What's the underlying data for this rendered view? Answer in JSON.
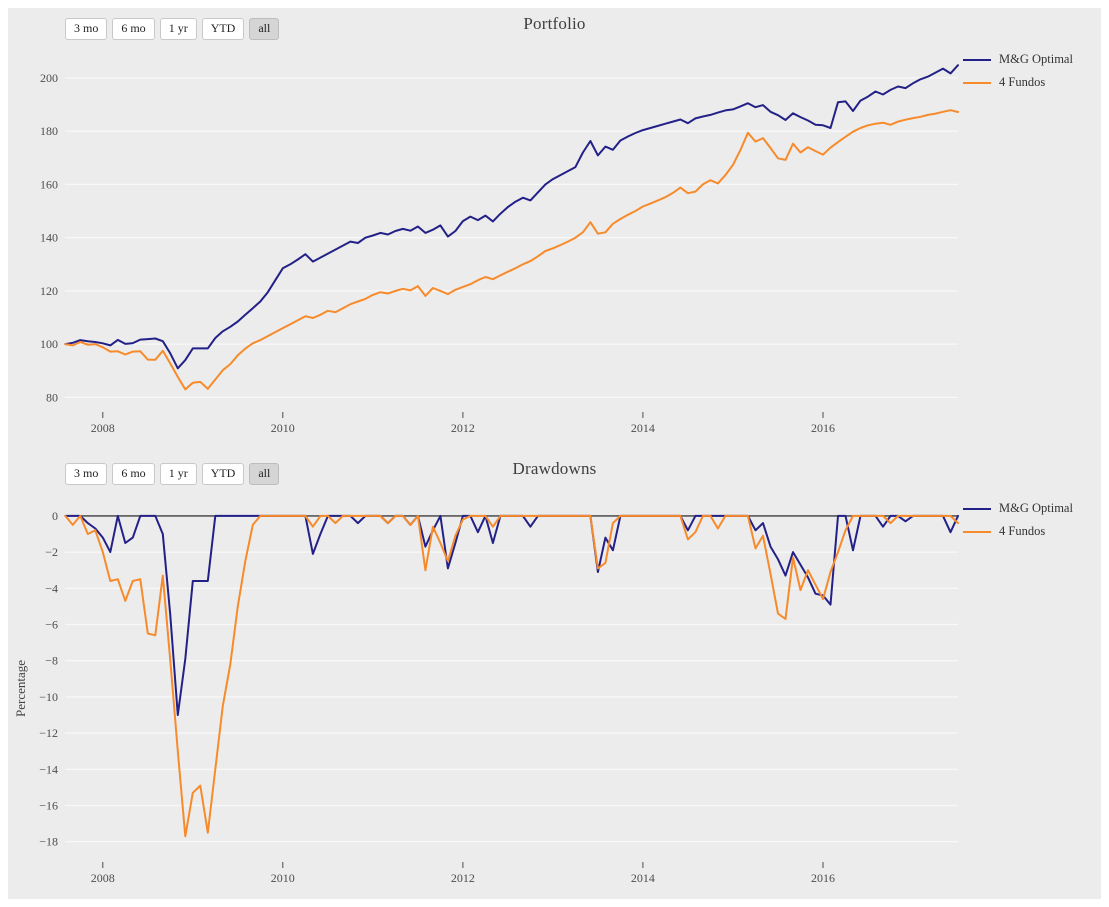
{
  "page": {
    "panel_background": "#ececec",
    "grid_color": "#f8f8f8",
    "zero_line_color": "#3d3d3d",
    "tick_label_color": "#4d4d4d",
    "title_color": "#3f3f3f"
  },
  "range_selector": {
    "buttons": [
      "3 mo",
      "6 mo",
      "1 yr",
      "YTD",
      "all"
    ],
    "active": "all"
  },
  "chart_data": [
    {
      "type": "line",
      "title": "Portfolio",
      "xlabel": "",
      "ylabel": "",
      "legend_position": "right",
      "grid": "horizontal",
      "zero_line": false,
      "x_start": 2007.5833,
      "x_step": 0.0833333,
      "x_range": [
        2007.58,
        2017.5
      ],
      "y_range": [
        76,
        210.5
      ],
      "x_ticks": [
        2008,
        2010,
        2012,
        2014,
        2016
      ],
      "y_ticks": [
        80,
        100,
        120,
        140,
        160,
        180,
        200
      ],
      "series": [
        {
          "name": "M&G Optimal",
          "color": "#232187",
          "values": [
            100.0,
            100.5,
            101.5,
            101.1,
            100.8,
            100.3,
            99.5,
            101.6,
            100.1,
            100.4,
            101.7,
            101.9,
            102.1,
            101.1,
            96.5,
            90.9,
            94.0,
            98.4,
            98.4,
            98.4,
            102.3,
            104.8,
            106.5,
            108.5,
            111.0,
            113.5,
            116.0,
            119.5,
            124.0,
            128.5,
            130.0,
            131.8,
            133.8,
            131.0,
            132.5,
            134.0,
            135.5,
            137.0,
            138.5,
            138.0,
            140.0,
            140.8,
            141.8,
            141.2,
            142.5,
            143.3,
            142.6,
            144.2,
            141.8,
            143.0,
            144.6,
            140.4,
            142.5,
            146.2,
            147.9,
            146.6,
            148.3,
            146.1,
            149.0,
            151.5,
            153.5,
            155.0,
            154.0,
            157.0,
            160.0,
            162.0,
            163.5,
            165.0,
            166.5,
            172.0,
            176.3,
            170.9,
            174.2,
            173.0,
            176.5,
            178.0,
            179.3,
            180.4,
            181.2,
            182.0,
            182.8,
            183.6,
            184.4,
            183.0,
            184.8,
            185.5,
            186.1,
            187.0,
            187.8,
            188.2,
            189.3,
            190.5,
            189.0,
            189.8,
            187.3,
            186.0,
            184.2,
            186.7,
            185.3,
            184.0,
            182.4,
            182.2,
            181.2,
            190.9,
            191.2,
            187.6,
            191.5,
            193.0,
            194.9,
            193.8,
            195.5,
            196.8,
            196.2,
            198.0,
            199.5,
            200.5,
            202.0,
            203.5,
            201.7,
            204.8
          ]
        },
        {
          "name": "4 Fundos",
          "color": "#f78b2b",
          "values": [
            100.0,
            99.5,
            100.8,
            99.8,
            100.0,
            98.8,
            97.2,
            97.3,
            96.1,
            97.2,
            97.3,
            94.2,
            94.1,
            97.5,
            92.7,
            87.7,
            83.0,
            85.5,
            85.8,
            83.2,
            86.7,
            90.2,
            92.5,
            95.8,
            98.3,
            100.3,
            101.5,
            103.0,
            104.5,
            106.0,
            107.5,
            109.0,
            110.5,
            109.8,
            111.0,
            112.5,
            112.0,
            113.5,
            115.0,
            116.0,
            117.0,
            118.5,
            119.5,
            119.0,
            120.0,
            120.8,
            120.2,
            121.8,
            118.1,
            121.1,
            120.0,
            118.8,
            120.4,
            121.5,
            122.5,
            124.0,
            125.2,
            124.4,
            125.8,
            127.2,
            128.5,
            130.0,
            131.2,
            133.0,
            135.0,
            136.0,
            137.2,
            138.5,
            140.0,
            142.0,
            145.8,
            141.5,
            142.0,
            145.2,
            147.0,
            148.6,
            150.0,
            151.7,
            152.8,
            154.0,
            155.2,
            156.8,
            158.8,
            156.7,
            157.3,
            160.0,
            161.6,
            160.4,
            163.5,
            167.3,
            172.9,
            179.4,
            176.1,
            177.4,
            173.7,
            169.8,
            169.2,
            175.3,
            172.0,
            174.0,
            172.5,
            171.2,
            173.8,
            175.9,
            177.9,
            179.8,
            181.2,
            182.2,
            182.8,
            183.2,
            182.4,
            183.6,
            184.3,
            184.9,
            185.4,
            186.1,
            186.6,
            187.3,
            187.9,
            187.2
          ]
        }
      ]
    },
    {
      "type": "line",
      "title": "Drawdowns",
      "xlabel": "",
      "ylabel": "Percentage",
      "legend_position": "right",
      "grid": "horizontal",
      "zero_line": true,
      "x_start": 2007.5833,
      "x_step": 0.0833333,
      "x_range": [
        2007.58,
        2017.5
      ],
      "y_range": [
        -18.9,
        0.6
      ],
      "x_ticks": [
        2008,
        2010,
        2012,
        2014,
        2016
      ],
      "y_ticks": [
        0,
        -2,
        -4,
        -6,
        -8,
        -10,
        -12,
        -14,
        -16,
        -18
      ],
      "series": [
        {
          "name": "M&G Optimal",
          "color": "#232187",
          "values": [
            0,
            0,
            0,
            -0.4,
            -0.7,
            -1.2,
            -2.0,
            0,
            -1.5,
            -1.2,
            0,
            0,
            0,
            -1.0,
            -5.5,
            -11.0,
            -7.9,
            -3.6,
            -3.6,
            -3.6,
            0,
            0,
            0,
            0,
            0,
            0,
            0,
            0,
            0,
            0,
            0,
            0,
            0,
            -2.1,
            -1.0,
            0,
            0,
            0,
            0,
            -0.4,
            0,
            0,
            0,
            -0.4,
            0,
            0,
            -0.5,
            0,
            -1.7,
            -0.8,
            0,
            -2.9,
            -1.5,
            0,
            0,
            -0.9,
            0,
            -1.5,
            0,
            0,
            0,
            0,
            -0.6,
            0,
            0,
            0,
            0,
            0,
            0,
            0,
            0,
            -3.1,
            -1.2,
            -1.9,
            0,
            0,
            0,
            0,
            0,
            0,
            0,
            0,
            0,
            -0.8,
            0,
            0,
            0,
            0,
            0,
            0,
            0,
            0,
            -0.8,
            -0.4,
            -1.7,
            -2.4,
            -3.3,
            -2.0,
            -2.7,
            -3.4,
            -4.3,
            -4.4,
            -4.9,
            0,
            0,
            -1.9,
            0,
            0,
            0,
            -0.6,
            0,
            0,
            -0.3,
            0,
            0,
            0,
            0,
            0,
            -0.9,
            0
          ]
        },
        {
          "name": "4 Fundos",
          "color": "#f78b2b",
          "values": [
            0,
            -0.5,
            0,
            -1.0,
            -0.8,
            -2.0,
            -3.6,
            -3.5,
            -4.7,
            -3.6,
            -3.5,
            -6.5,
            -6.6,
            -3.3,
            -8.0,
            -13.0,
            -17.7,
            -15.3,
            -14.9,
            -17.5,
            -14.0,
            -10.5,
            -8.2,
            -5.0,
            -2.5,
            -0.5,
            0,
            0,
            0,
            0,
            0,
            0,
            0,
            -0.6,
            0,
            0,
            -0.4,
            0,
            0,
            0,
            0,
            0,
            0,
            -0.4,
            0,
            0,
            -0.5,
            0,
            -3.0,
            -0.6,
            -1.5,
            -2.5,
            -1.1,
            -0.2,
            0,
            0,
            0,
            -0.6,
            0,
            0,
            0,
            0,
            0,
            0,
            0,
            0,
            0,
            0,
            0,
            0,
            0,
            -2.9,
            -2.6,
            -0.4,
            0,
            0,
            0,
            0,
            0,
            0,
            0,
            0,
            0,
            -1.3,
            -0.9,
            0,
            0,
            -0.7,
            0,
            0,
            0,
            0,
            -1.8,
            -1.1,
            -3.2,
            -5.4,
            -5.7,
            -2.3,
            -4.1,
            -3.0,
            -3.8,
            -4.6,
            -3.1,
            -2.0,
            -0.8,
            0,
            0,
            0,
            0,
            0,
            -0.4,
            0,
            0,
            0,
            0,
            0,
            0,
            0,
            0,
            -0.4
          ]
        }
      ]
    }
  ]
}
